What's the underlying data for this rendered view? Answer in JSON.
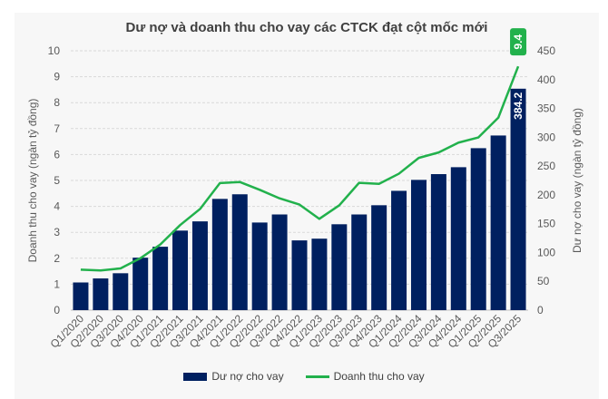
{
  "chart_data": {
    "type": "bar+line",
    "title": "Dư nợ và doanh thu cho vay các CTCK đạt cột mốc mới",
    "categories": [
      "Q1/2020",
      "Q2/2020",
      "Q3/2020",
      "Q4/2020",
      "Q1/2021",
      "Q2/2021",
      "Q3/2021",
      "Q4/2021",
      "Q1/2022",
      "Q2/2022",
      "Q3/2022",
      "Q4/2022",
      "Q1/2023",
      "Q2/2023",
      "Q3/2023",
      "Q4/2023",
      "Q1/2024",
      "Q2/2024",
      "Q3/2024",
      "Q4/2024",
      "Q1/2025",
      "Q2/2025",
      "Q3/2025"
    ],
    "series": [
      {
        "name": "Dư nợ cho vay",
        "type": "bar",
        "axis": "right",
        "color": "#002060",
        "values": [
          48,
          55,
          64,
          91,
          110,
          138,
          154,
          193,
          201,
          152,
          166,
          121,
          124,
          149,
          166,
          182,
          207,
          226,
          236,
          248,
          281,
          303,
          384.2
        ],
        "labeled_point": {
          "index": 22,
          "label": "384.2"
        }
      },
      {
        "name": "Doanh thu cho vay",
        "type": "line",
        "axis": "left",
        "color": "#22b14c",
        "values": [
          1.56,
          1.53,
          1.61,
          2.0,
          2.53,
          3.28,
          3.9,
          4.9,
          4.94,
          4.64,
          4.31,
          4.07,
          3.52,
          4.04,
          4.91,
          4.87,
          5.26,
          5.87,
          6.08,
          6.46,
          6.66,
          7.42,
          9.4
        ],
        "labeled_point": {
          "index": 22,
          "label": "9.4"
        }
      }
    ],
    "ylabel_left": "Doanh thu cho vay (ngàn tỷ đồng)",
    "ylabel_right": "Dư nợ cho vay (ngàn tỷ đồng)",
    "ylim_left": [
      0,
      10
    ],
    "ylim_right": [
      0,
      450
    ],
    "yticks_left": [
      "0",
      "1",
      "2",
      "3",
      "4",
      "5",
      "6",
      "7",
      "8",
      "9",
      "10"
    ],
    "yticks_right": [
      "0",
      "50",
      "100",
      "150",
      "200",
      "250",
      "300",
      "350",
      "400",
      "450"
    ],
    "grid": true,
    "legend_position": "bottom"
  }
}
